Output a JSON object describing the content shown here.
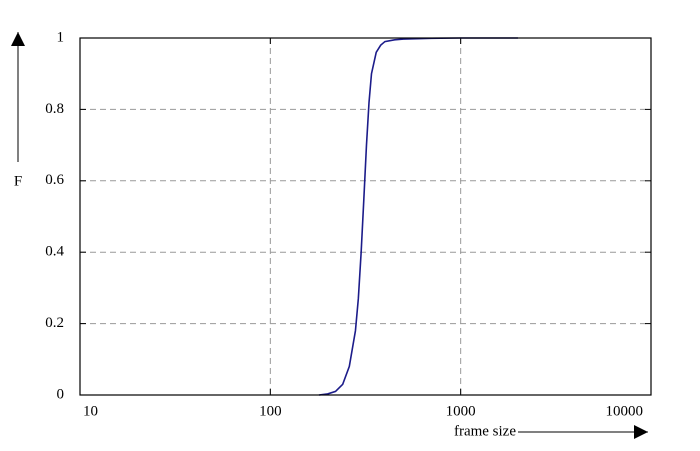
{
  "chart_data": {
    "type": "line",
    "x_label": "frame size",
    "y_label": "F",
    "x": [
      180,
      200,
      220,
      240,
      260,
      280,
      290,
      300,
      310,
      320,
      330,
      340,
      360,
      380,
      400,
      450,
      500,
      700,
      1000,
      2000
    ],
    "series": [
      {
        "color": "#1c1c8a",
        "values": [
          0,
          0.003,
          0.01,
          0.03,
          0.08,
          0.18,
          0.27,
          0.4,
          0.55,
          0.7,
          0.82,
          0.9,
          0.96,
          0.98,
          0.99,
          0.995,
          0.997,
          0.999,
          1,
          1
        ]
      }
    ],
    "xlim": [
      10,
      10000
    ],
    "xticks": [
      10,
      100,
      1000,
      10000
    ],
    "xlog": true,
    "ylim": [
      0,
      1
    ],
    "yticks": [
      0,
      0.2,
      0.4,
      0.6,
      0.8,
      1
    ],
    "grid": true
  }
}
